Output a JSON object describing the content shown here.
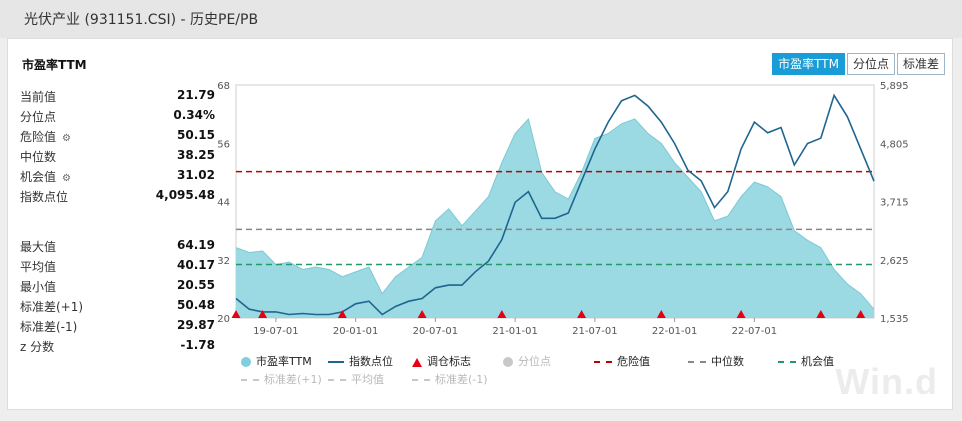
{
  "window": {
    "title": "光伏产业 (931151.CSI) - 历史PE/PB"
  },
  "tabs": [
    {
      "label": "市盈率TTM",
      "active": true
    },
    {
      "label": "分位点",
      "active": false
    },
    {
      "label": "标准差",
      "active": false
    }
  ],
  "stats": {
    "title": "市盈率TTM",
    "current": [
      {
        "label": "当前值",
        "value": "21.79",
        "gear": false
      },
      {
        "label": "分位点",
        "value": "0.34%",
        "gear": false
      },
      {
        "label": "危险值",
        "value": "50.15",
        "gear": true
      },
      {
        "label": "中位数",
        "value": "38.25",
        "gear": false
      },
      {
        "label": "机会值",
        "value": "31.02",
        "gear": true
      },
      {
        "label": "指数点位",
        "value": "4,095.48",
        "gear": false
      }
    ],
    "summary": [
      {
        "label": "最大值",
        "value": "64.19"
      },
      {
        "label": "平均值",
        "value": "40.17"
      },
      {
        "label": "最小值",
        "value": "20.55"
      },
      {
        "label": "标准差(+1)",
        "value": "50.48"
      },
      {
        "label": "标准差(-1)",
        "value": "29.87"
      },
      {
        "label": "z 分数",
        "value": "-1.78"
      }
    ]
  },
  "legend": {
    "row1": [
      {
        "label": "市盈率TTM",
        "kind": "dot",
        "color": "#7fd0dc",
        "muted": false
      },
      {
        "label": "指数点位",
        "kind": "line",
        "color": "#1e6690",
        "muted": false
      },
      {
        "label": "调仓标志",
        "kind": "triangle",
        "color": "#e60012",
        "muted": false
      },
      {
        "label": "分位点",
        "kind": "dot",
        "color": "#c8c8c8",
        "muted": true
      },
      {
        "label": "危险值",
        "kind": "dash",
        "color": "#c00000",
        "muted": false
      },
      {
        "label": "中位数",
        "kind": "dash",
        "color": "#888888",
        "muted": false
      },
      {
        "label": "机会值",
        "kind": "dash",
        "color": "#229966",
        "muted": false
      }
    ],
    "row2": [
      {
        "label": "标准差(+1)",
        "kind": "dash",
        "color": "#c8c8c8",
        "muted": true
      },
      {
        "label": "平均值",
        "kind": "dash",
        "color": "#c8c8c8",
        "muted": true
      },
      {
        "label": "标准差(-1)",
        "kind": "dash",
        "color": "#c8c8c8",
        "muted": true
      }
    ]
  },
  "watermark": "Win.d",
  "chart_data": {
    "type": "area",
    "x_tick_labels": [
      "19-07-01",
      "20-01-01",
      "20-07-01",
      "21-01-01",
      "21-07-01",
      "22-01-01",
      "22-07-01"
    ],
    "x_range": [
      "2019-04",
      "2023-04"
    ],
    "y_left": {
      "range": [
        20,
        68
      ],
      "ticks": [
        20,
        32,
        44,
        56,
        68
      ]
    },
    "y_right": {
      "range": [
        1535,
        5895
      ],
      "ticks": [
        "1,535",
        "2,625",
        "3,715",
        "4,805",
        "5,895"
      ]
    },
    "colors": {
      "pe_fill": "#96d8e0",
      "pe_line": "#7cc9d5",
      "index_line": "#1e6690",
      "danger": "#c00000",
      "median": "#888888",
      "opportunity": "#229966",
      "marker": "#e60012"
    },
    "reference_lines": {
      "danger": 50.15,
      "median": 38.25,
      "opportunity": 31.02
    },
    "series": [
      {
        "name": "市盈率TTM",
        "axis": "left",
        "x": [
          "2019-04",
          "2019-05",
          "2019-06",
          "2019-07",
          "2019-08",
          "2019-09",
          "2019-10",
          "2019-11",
          "2019-12",
          "2020-01",
          "2020-02",
          "2020-03",
          "2020-04",
          "2020-05",
          "2020-06",
          "2020-07",
          "2020-08",
          "2020-09",
          "2020-10",
          "2020-11",
          "2020-12",
          "2021-01",
          "2021-02",
          "2021-03",
          "2021-04",
          "2021-05",
          "2021-06",
          "2021-07",
          "2021-08",
          "2021-09",
          "2021-10",
          "2021-11",
          "2021-12",
          "2022-01",
          "2022-02",
          "2022-03",
          "2022-04",
          "2022-05",
          "2022-06",
          "2022-07",
          "2022-08",
          "2022-09",
          "2022-10",
          "2022-11",
          "2022-12",
          "2023-01",
          "2023-02",
          "2023-03",
          "2023-04"
        ],
        "values": [
          34.5,
          33.5,
          33.8,
          31.0,
          31.5,
          30.0,
          30.5,
          30.0,
          28.5,
          29.5,
          30.5,
          25.0,
          28.5,
          30.5,
          32.5,
          40.0,
          42.5,
          39.0,
          42.0,
          45.0,
          52.0,
          58.0,
          61.0,
          50.0,
          46.0,
          44.5,
          50.0,
          57.0,
          58.0,
          60.0,
          61.0,
          58.0,
          56.0,
          52.0,
          49.0,
          46.0,
          40.0,
          41.0,
          45.0,
          48.0,
          47.0,
          45.0,
          38.0,
          36.0,
          34.5,
          30.0,
          27.0,
          25.0,
          21.79
        ]
      },
      {
        "name": "指数点位",
        "axis": "right",
        "x": [
          "2019-04",
          "2019-05",
          "2019-06",
          "2019-07",
          "2019-08",
          "2019-09",
          "2019-10",
          "2019-11",
          "2019-12",
          "2020-01",
          "2020-02",
          "2020-03",
          "2020-04",
          "2020-05",
          "2020-06",
          "2020-07",
          "2020-08",
          "2020-09",
          "2020-10",
          "2020-11",
          "2020-12",
          "2021-01",
          "2021-02",
          "2021-03",
          "2021-04",
          "2021-05",
          "2021-06",
          "2021-07",
          "2021-08",
          "2021-09",
          "2021-10",
          "2021-11",
          "2021-12",
          "2022-01",
          "2022-02",
          "2022-03",
          "2022-04",
          "2022-05",
          "2022-06",
          "2022-07",
          "2022-08",
          "2022-09",
          "2022-10",
          "2022-11",
          "2022-12",
          "2023-01",
          "2023-02",
          "2023-03",
          "2023-04"
        ],
        "values": [
          1900,
          1700,
          1650,
          1650,
          1600,
          1620,
          1600,
          1600,
          1650,
          1800,
          1850,
          1600,
          1750,
          1850,
          1900,
          2100,
          2150,
          2150,
          2400,
          2600,
          3000,
          3700,
          3900,
          3400,
          3400,
          3500,
          4100,
          4700,
          5200,
          5600,
          5700,
          5500,
          5200,
          4800,
          4300,
          4100,
          3600,
          3900,
          4700,
          5200,
          5000,
          5100,
          4400,
          4800,
          4900,
          5700,
          5300,
          4700,
          4095
        ]
      }
    ],
    "markers": {
      "name": "调仓标志",
      "x": [
        "2019-04",
        "2019-06",
        "2019-12",
        "2020-06",
        "2020-12",
        "2021-06",
        "2021-12",
        "2022-06",
        "2022-12",
        "2023-03"
      ]
    }
  }
}
